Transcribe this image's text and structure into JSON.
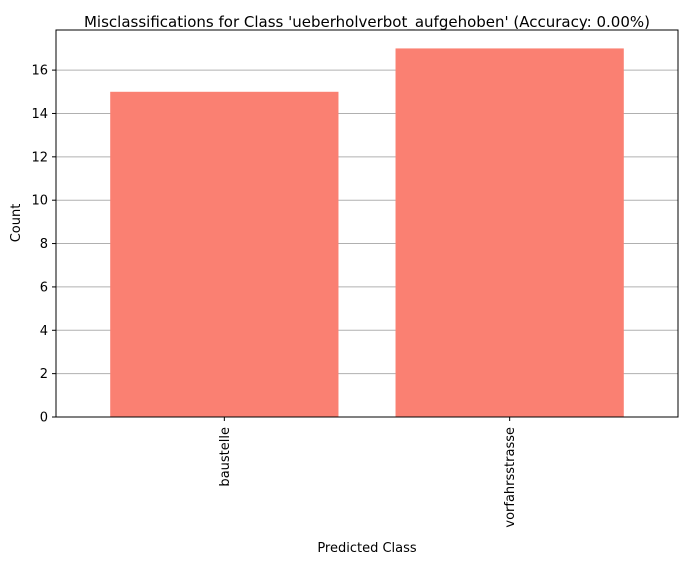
{
  "chart_data": {
    "type": "bar",
    "title": "Misclassifications for Class 'ueberholverbot_aufgehoben' (Accuracy: 0.00%)",
    "xlabel": "Predicted Class",
    "ylabel": "Count",
    "categories": [
      "baustelle",
      "vorfahrsstrasse"
    ],
    "values": [
      15,
      17
    ],
    "ylim": [
      0,
      17.85
    ],
    "yticks": [
      0,
      2,
      4,
      6,
      8,
      10,
      12,
      14,
      16
    ],
    "ytick_labels": [
      "0",
      "2",
      "4",
      "6",
      "8",
      "10",
      "12",
      "14",
      "16"
    ],
    "xtick_rotation": "vertical",
    "grid": "y-axis only",
    "legend": "none",
    "bar_color": "#fa8072",
    "grid_color": "#b0b0b0"
  }
}
